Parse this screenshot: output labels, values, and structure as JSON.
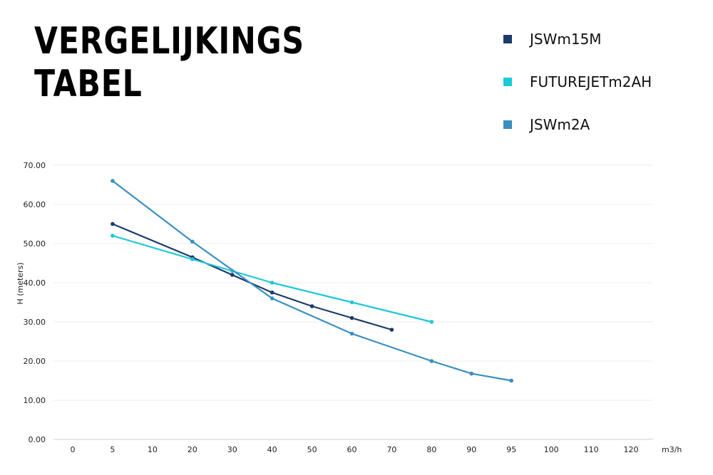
{
  "title_lines": [
    "VERGELIJKINGS",
    "TABEL"
  ],
  "chart_data": {
    "type": "line",
    "title": "VERGELIJKINGS TABEL",
    "xlabel": "m3/h",
    "ylabel": "H (meters)",
    "categories": [
      "0",
      "5",
      "10",
      "20",
      "30",
      "40",
      "50",
      "60",
      "70",
      "80",
      "90",
      "95",
      "100",
      "110",
      "120"
    ],
    "yticks": [
      "0.00",
      "10.00",
      "20.00",
      "30.00",
      "40.00",
      "50.00",
      "60.00",
      "70.00"
    ],
    "ylim": [
      0,
      70
    ],
    "grid": true,
    "legend_position": "top-right",
    "series": [
      {
        "name": "JSWm15M",
        "color": "#1b3a6b",
        "values": [
          null,
          55,
          null,
          46.5,
          42,
          37.5,
          34,
          31,
          28,
          null,
          null,
          null,
          null,
          null,
          null
        ]
      },
      {
        "name": "FUTUREJETm2AH",
        "color": "#1ec8d8",
        "values": [
          null,
          52,
          null,
          46,
          43,
          40,
          null,
          35,
          null,
          30,
          null,
          null,
          null,
          null,
          null
        ]
      },
      {
        "name": "JSWm2A",
        "color": "#3a8fc0",
        "values": [
          null,
          66,
          null,
          50.5,
          null,
          36,
          null,
          27,
          null,
          20,
          16.8,
          15,
          null,
          null,
          null
        ]
      }
    ]
  }
}
